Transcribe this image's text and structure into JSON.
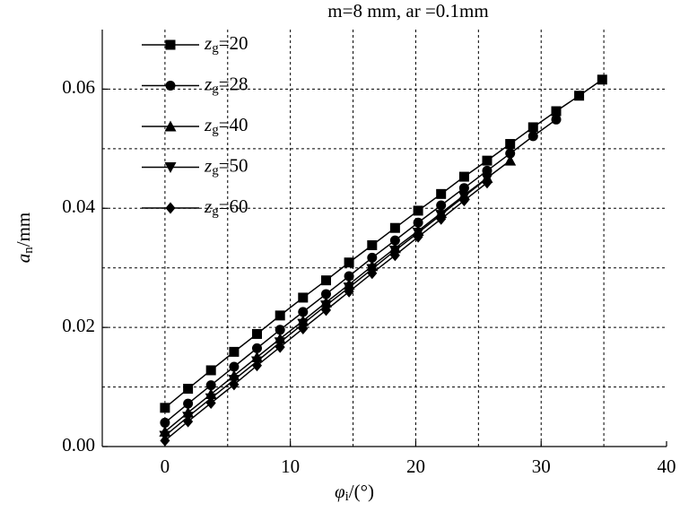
{
  "chart_data": {
    "type": "line",
    "title": "m=8 mm, ar =0.1mm",
    "x_label": "φi/(°)",
    "y_label": "an/mm",
    "xlim": [
      -5,
      40
    ],
    "ylim": [
      0,
      0.07
    ],
    "xticks": [
      0,
      10,
      20,
      30,
      40
    ],
    "yticks": [
      {
        "value": 0,
        "label": "0.00"
      },
      0.02,
      0.04,
      0.06
    ],
    "xgrid": [
      0,
      5,
      10,
      15,
      20,
      25,
      30,
      35
    ],
    "ygrid": [
      0.01,
      0.02,
      0.03,
      0.04,
      0.05,
      0.06
    ],
    "grid": true,
    "legend": "upper left",
    "series": [
      {
        "name": "zg=20",
        "color": "#000000",
        "marker": "square",
        "x": [
          0,
          1.84,
          3.67,
          5.51,
          7.34,
          9.18,
          11.01,
          12.85,
          14.68,
          16.52,
          18.35,
          20.19,
          22.02,
          23.86,
          25.69,
          27.53,
          29.36,
          31.2,
          33.03,
          34.87
        ],
        "values": [
          0.0065,
          0.0097,
          0.0128,
          0.0159,
          0.0189,
          0.022,
          0.025,
          0.0279,
          0.0309,
          0.0338,
          0.0367,
          0.0396,
          0.0424,
          0.0453,
          0.048,
          0.0508,
          0.0536,
          0.0563,
          0.0589,
          0.0616
        ]
      },
      {
        "name": "zg=28",
        "color": "#000000",
        "marker": "circle",
        "x": [
          0,
          1.84,
          3.67,
          5.51,
          7.34,
          9.18,
          11.01,
          12.85,
          14.68,
          16.52,
          18.35,
          20.19,
          22.02,
          23.86,
          25.69,
          27.53,
          29.36,
          31.2
        ],
        "values": [
          0.004,
          0.0072,
          0.0103,
          0.0134,
          0.0165,
          0.0196,
          0.0226,
          0.0256,
          0.0286,
          0.0317,
          0.0346,
          0.0376,
          0.0405,
          0.0434,
          0.0463,
          0.0492,
          0.0521,
          0.0549
        ]
      },
      {
        "name": "zg=40",
        "color": "#000000",
        "marker": "triangle-up",
        "x": [
          0,
          1.84,
          3.67,
          5.51,
          7.34,
          9.18,
          11.01,
          12.85,
          14.68,
          16.52,
          18.35,
          20.19,
          22.02,
          23.86,
          25.69,
          27.53
        ],
        "values": [
          0.0025,
          0.0057,
          0.0088,
          0.0119,
          0.015,
          0.0181,
          0.0211,
          0.0242,
          0.0272,
          0.0303,
          0.0333,
          0.0362,
          0.0392,
          0.0422,
          0.0451,
          0.048
        ]
      },
      {
        "name": "zg=50",
        "color": "#000000",
        "marker": "triangle-down",
        "x": [
          0,
          1.84,
          3.67,
          5.51,
          7.34,
          9.18,
          11.01,
          12.85,
          14.68,
          16.52,
          18.35,
          20.19,
          22.02,
          23.86,
          25.69
        ],
        "values": [
          0.0018,
          0.005,
          0.0081,
          0.0112,
          0.0143,
          0.0175,
          0.0206,
          0.0237,
          0.0267,
          0.0298,
          0.0329,
          0.0359,
          0.0389,
          0.042,
          0.045
        ]
      },
      {
        "name": "zg=60",
        "color": "#000000",
        "marker": "diamond",
        "x": [
          0,
          1.84,
          3.67,
          5.51,
          7.34,
          9.18,
          11.01,
          12.85,
          14.68,
          16.52,
          18.35,
          20.19,
          22.02,
          23.86,
          25.69
        ],
        "values": [
          0.001,
          0.0042,
          0.0073,
          0.0104,
          0.0136,
          0.0167,
          0.0198,
          0.0229,
          0.026,
          0.0291,
          0.0321,
          0.0352,
          0.0382,
          0.0413,
          0.0443
        ]
      }
    ]
  }
}
